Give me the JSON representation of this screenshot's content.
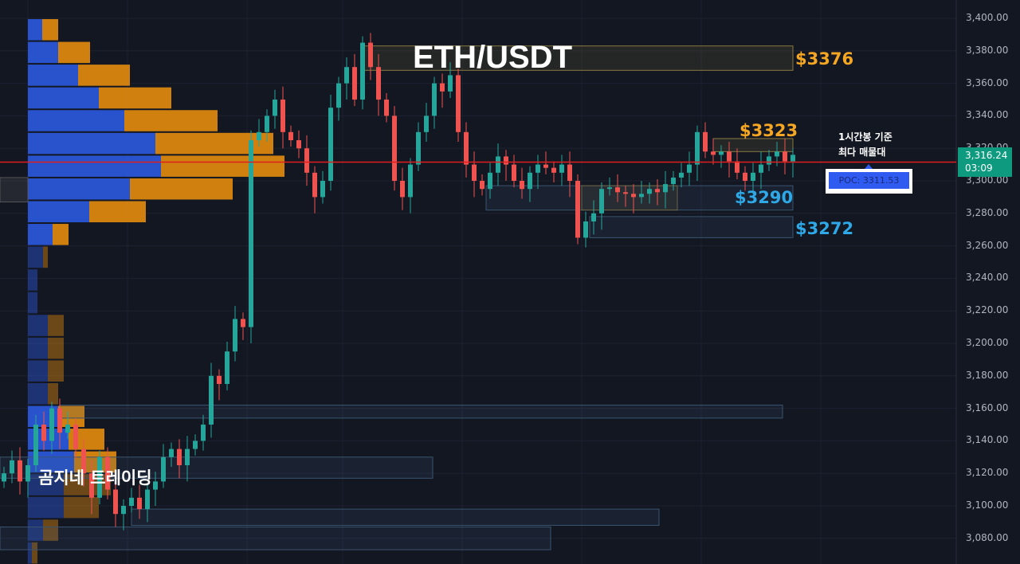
{
  "chart_data": {
    "type": "candlestick",
    "title": "ETH/USDT",
    "ylim": [
      3070,
      3410
    ],
    "y_ticks": [
      "3,400.00",
      "3,380.00",
      "3,360.00",
      "3,340.00",
      "3,320.00",
      "3,300.00",
      "3,280.00",
      "3,260.00",
      "3,240.00",
      "3,220.00",
      "3,200.00",
      "3,180.00",
      "3,160.00",
      "3,140.00",
      "3,120.00",
      "3,100.00",
      "3,080.00"
    ],
    "y_tick_values": [
      3400,
      3380,
      3360,
      3340,
      3320,
      3300,
      3280,
      3260,
      3240,
      3220,
      3200,
      3180,
      3160,
      3140,
      3120,
      3100,
      3080
    ],
    "close": [
      3120,
      3128,
      3115,
      3125,
      3150,
      3140,
      3160,
      3145,
      3150,
      3135,
      3120,
      3105,
      3130,
      3110,
      3095,
      3100,
      3105,
      3098,
      3110,
      3115,
      3130,
      3135,
      3125,
      3135,
      3140,
      3150,
      3180,
      3175,
      3195,
      3215,
      3210,
      3325,
      3330,
      3340,
      3350,
      3330,
      3325,
      3320,
      3305,
      3290,
      3300,
      3345,
      3360,
      3370,
      3350,
      3385,
      3370,
      3350,
      3340,
      3300,
      3290,
      3310,
      3330,
      3340,
      3360,
      3355,
      3365,
      3330,
      3310,
      3300,
      3295,
      3305,
      3315,
      3310,
      3300,
      3295,
      3305,
      3310,
      3308,
      3305,
      3310,
      3300,
      3265,
      3275,
      3280,
      3295,
      3296,
      3293,
      3292,
      3290,
      3292,
      3295,
      3293,
      3298,
      3302,
      3305,
      3310,
      3330,
      3318,
      3316,
      3318,
      3312,
      3305,
      3300,
      3305,
      3310,
      3315,
      3318,
      3312,
      3316
    ],
    "current_price": "3,316.24",
    "countdown": "03:09",
    "poc_line": 3311.53,
    "volume_profile": {
      "bin_top_prices": [
        3400,
        3386,
        3372,
        3358,
        3344,
        3330,
        3316,
        3302,
        3288,
        3274,
        3260,
        3246,
        3232,
        3218,
        3204,
        3190,
        3176,
        3162,
        3148,
        3134,
        3120,
        3106,
        3092,
        3078
      ],
      "buy": [
        18,
        38,
        63,
        89,
        121,
        160,
        167,
        128,
        77,
        31,
        19,
        12,
        12,
        25,
        25,
        25,
        25,
        38,
        51,
        58,
        45,
        45,
        19,
        5
      ],
      "sell": [
        20,
        40,
        65,
        91,
        117,
        148,
        155,
        129,
        71,
        20,
        6,
        0,
        0,
        20,
        20,
        20,
        13,
        33,
        45,
        53,
        59,
        44,
        19,
        7
      ],
      "colors": {
        "buy": "#2a56d6",
        "sell": "#d9860f"
      }
    },
    "zones": [
      {
        "label": "$3376",
        "top": 3383,
        "bottom": 3368,
        "kind": "resistance",
        "color": "#f5a623"
      },
      {
        "label": "$3323",
        "top": 3326,
        "bottom": 3318,
        "kind": "resistance",
        "color": "#f5a623"
      },
      {
        "label": "$3290",
        "top": 3297,
        "bottom": 3282,
        "kind": "support",
        "color": "#2ea8e6"
      },
      {
        "label": "$3272",
        "top": 3278,
        "bottom": 3265,
        "kind": "support",
        "color": "#2ea8e6"
      },
      {
        "label": "",
        "top": 3162,
        "bottom": 3154,
        "kind": "support",
        "color": "#2ea8e6"
      },
      {
        "label": "",
        "top": 3130,
        "bottom": 3117,
        "kind": "support",
        "color": "#2ea8e6"
      },
      {
        "label": "",
        "top": 3098,
        "bottom": 3088,
        "kind": "support",
        "color": "#2ea8e6"
      },
      {
        "label": "",
        "top": 3087,
        "bottom": 3073,
        "kind": "support",
        "color": "#2ea8e6"
      }
    ],
    "colors": {
      "up": "#26a69a",
      "down": "#ef5350",
      "poc_line": "#e01e1e"
    }
  },
  "annotation": {
    "line1": "1시간봉 기준",
    "line2": "최다 매물대",
    "poc_label": "POC: 3311.53"
  },
  "watermark": "곰지네 트레이딩"
}
